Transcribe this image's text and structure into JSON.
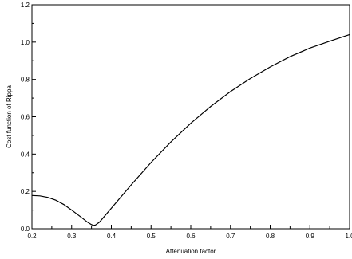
{
  "chart_data": {
    "type": "line",
    "title": "",
    "xlabel": "Attenuation factor",
    "ylabel": "Cost function of Rippa",
    "xlim": [
      0.2,
      1.0
    ],
    "ylim": [
      0.0,
      1.2
    ],
    "grid": false,
    "x_ticks": [
      "0.2",
      "0.3",
      "0.4",
      "0.5",
      "0.6",
      "0.7",
      "0.8",
      "0.9",
      "1.0"
    ],
    "y_ticks": [
      "0.0",
      "0.2",
      "0.4",
      "0.6",
      "0.8",
      "1.0",
      "1.2"
    ],
    "series": [
      {
        "x": [
          0.2,
          0.22,
          0.24,
          0.26,
          0.28,
          0.3,
          0.32,
          0.34,
          0.35,
          0.355,
          0.36,
          0.37,
          0.38,
          0.4,
          0.45,
          0.5,
          0.55,
          0.6,
          0.65,
          0.7,
          0.75,
          0.8,
          0.85,
          0.9,
          0.95,
          1.0
        ],
        "y": [
          0.178,
          0.176,
          0.168,
          0.153,
          0.13,
          0.1,
          0.068,
          0.035,
          0.022,
          0.018,
          0.02,
          0.035,
          0.06,
          0.11,
          0.235,
          0.355,
          0.465,
          0.565,
          0.655,
          0.735,
          0.805,
          0.867,
          0.922,
          0.968,
          1.005,
          1.04
        ],
        "color": "#000000"
      }
    ]
  }
}
